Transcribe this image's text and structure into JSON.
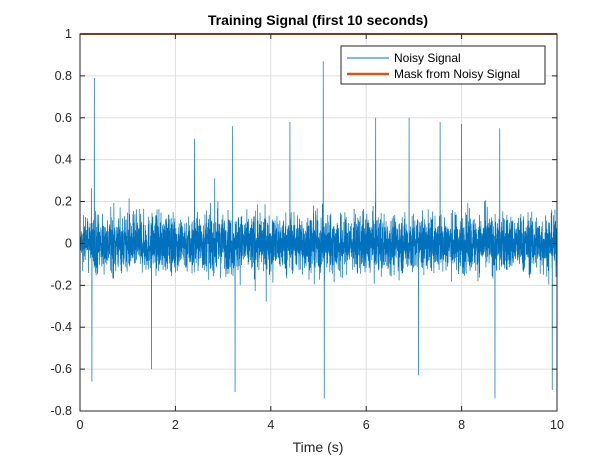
{
  "chart_data": {
    "type": "line",
    "title": "Training Signal (first 10 seconds)",
    "xlabel": "Time (s)",
    "ylabel": "",
    "xlim": [
      0,
      10
    ],
    "ylim": [
      -0.8,
      1
    ],
    "x_ticks": [
      0,
      2,
      4,
      6,
      8,
      10
    ],
    "x_tick_labels": [
      "0",
      "2",
      "4",
      "6",
      "8",
      "10"
    ],
    "y_ticks": [
      -0.8,
      -0.6,
      -0.4,
      -0.2,
      0,
      0.2,
      0.4,
      0.6,
      0.8,
      1
    ],
    "y_tick_labels": [
      "-0.8",
      "-0.6",
      "-0.4",
      "-0.2",
      "0",
      "0.2",
      "0.4",
      "0.6",
      "0.8",
      "1"
    ],
    "grid": true,
    "legend_position": "top-right",
    "series": [
      {
        "name": "Noisy Signal",
        "color": "#0072bd",
        "style": "dense noise, bulk roughly -0.3 to 0.3",
        "peaks": [
          {
            "x": 0.3,
            "y": 0.79
          },
          {
            "x": 0.25,
            "y": -0.66
          },
          {
            "x": 3.2,
            "y": 0.56
          },
          {
            "x": 3.25,
            "y": -0.71
          },
          {
            "x": 5.1,
            "y": 0.87
          },
          {
            "x": 5.12,
            "y": -0.74
          },
          {
            "x": 4.4,
            "y": 0.58
          },
          {
            "x": 6.2,
            "y": 0.6
          },
          {
            "x": 6.9,
            "y": 0.6
          },
          {
            "x": 7.55,
            "y": 0.58
          },
          {
            "x": 8.0,
            "y": 0.57
          },
          {
            "x": 8.8,
            "y": 0.55
          },
          {
            "x": 9.9,
            "y": 0.61
          },
          {
            "x": 8.7,
            "y": -0.74
          },
          {
            "x": 9.9,
            "y": -0.7
          },
          {
            "x": 7.1,
            "y": -0.63
          },
          {
            "x": 1.5,
            "y": -0.6
          },
          {
            "x": 2.4,
            "y": 0.5
          }
        ]
      },
      {
        "name": "Mask from Noisy Signal",
        "color": "#d95319",
        "x": [
          0,
          10
        ],
        "y": [
          1,
          1
        ]
      }
    ]
  }
}
